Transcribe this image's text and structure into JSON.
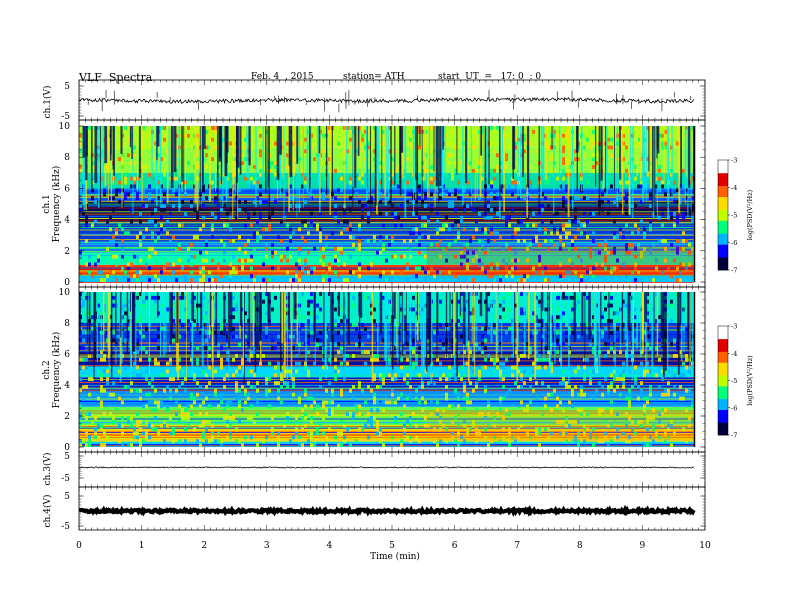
{
  "header": {
    "title": "VLF  Spectra",
    "date": "Feb. 4  , 2015",
    "station": "station= ATH",
    "start": "start  UT  =   17: 0  : 0"
  },
  "chart_data": [
    {
      "type": "line",
      "panel": "ch.1 waveform",
      "ylabel": "ch.1(V)",
      "ylim": [
        -5,
        5
      ],
      "yticks": [
        "5",
        "-5"
      ],
      "series": [
        {
          "values": [
            0.4,
            0.1,
            -0.2,
            0.0,
            0.3,
            0.2,
            0.0,
            0.1,
            0.5,
            0.4,
            0.6,
            0.3,
            -0.1,
            0.0
          ]
        }
      ],
      "color": "#000000"
    },
    {
      "type": "heatmap",
      "panel": "ch.1 spectrogram",
      "ylabel": "Frequency (kHz)",
      "channel_label": "ch.1",
      "ylim": [
        0,
        10
      ],
      "yticks": [
        "0",
        "2",
        "4",
        "6",
        "8",
        "10"
      ],
      "colorbar": {
        "label": "log(PSD(V²/Hz)",
        "range": [
          -7,
          -3
        ],
        "ticks": [
          "-3",
          "-4",
          "-5",
          "-6",
          "-7"
        ],
        "colors": [
          "#00003a",
          "#0000ff",
          "#00b4ff",
          "#00ff7a",
          "#bfff00",
          "#ffdc00",
          "#ff6000",
          "#e00000",
          "#ffffff"
        ]
      }
    },
    {
      "type": "heatmap",
      "panel": "ch.2 spectrogram",
      "ylabel": "Frequency (kHz)",
      "channel_label": "ch.2",
      "ylim": [
        0,
        10
      ],
      "yticks": [
        "0",
        "2",
        "4",
        "6",
        "8",
        "10"
      ],
      "colorbar": {
        "label": "log(PSD(V²/Hz)",
        "range": [
          -7,
          -3
        ],
        "ticks": [
          "-3",
          "-4",
          "-5",
          "-6",
          "-7"
        ]
      }
    },
    {
      "type": "line",
      "panel": "ch.3 waveform",
      "ylabel": "ch.3(V)",
      "ylim": [
        -5,
        5
      ],
      "yticks": [
        "5",
        "-5"
      ],
      "series": [
        {
          "values": [
            -0.2,
            -0.2,
            -0.2,
            -0.2,
            -0.2,
            -0.2
          ]
        }
      ]
    },
    {
      "type": "line",
      "panel": "ch.4 waveform",
      "ylabel": "ch.4(V)",
      "ylim": [
        -5,
        5
      ],
      "yticks": [
        "5",
        "-5"
      ],
      "series": [
        {
          "values": [
            0,
            0,
            0,
            0,
            0,
            0
          ]
        }
      ]
    }
  ],
  "x_axis": {
    "xlabel": "Time  (min)",
    "xlim": [
      0,
      10
    ],
    "ticks": [
      "0",
      "1",
      "2",
      "3",
      "4",
      "5",
      "6",
      "7",
      "8",
      "9",
      "10"
    ],
    "data_end": 9.82,
    "change_at": 5.55
  }
}
